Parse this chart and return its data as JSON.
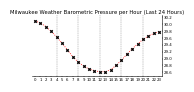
{
  "title": "Milwaukee Weather Barometric Pressure per Hour (Last 24 Hours)",
  "hours": [
    0,
    1,
    2,
    3,
    4,
    5,
    6,
    7,
    8,
    9,
    10,
    11,
    12,
    13,
    14,
    15,
    16,
    17,
    18,
    19,
    20,
    21,
    22,
    23
  ],
  "pressure": [
    30.08,
    30.02,
    29.92,
    29.78,
    29.62,
    29.44,
    29.25,
    29.05,
    28.9,
    28.78,
    28.7,
    28.65,
    28.62,
    28.62,
    28.68,
    28.8,
    28.95,
    29.12,
    29.28,
    29.42,
    29.55,
    29.65,
    29.72,
    29.77
  ],
  "line_color": "#ff0000",
  "marker_color": "#000000",
  "grid_color": "#888888",
  "bg_color": "#ffffff",
  "ylim_min": 28.5,
  "ylim_max": 30.25,
  "ytick_step": 0.2,
  "title_fontsize": 3.8,
  "tick_fontsize": 2.8,
  "vgrid_positions": [
    4,
    8,
    12,
    16,
    20
  ]
}
